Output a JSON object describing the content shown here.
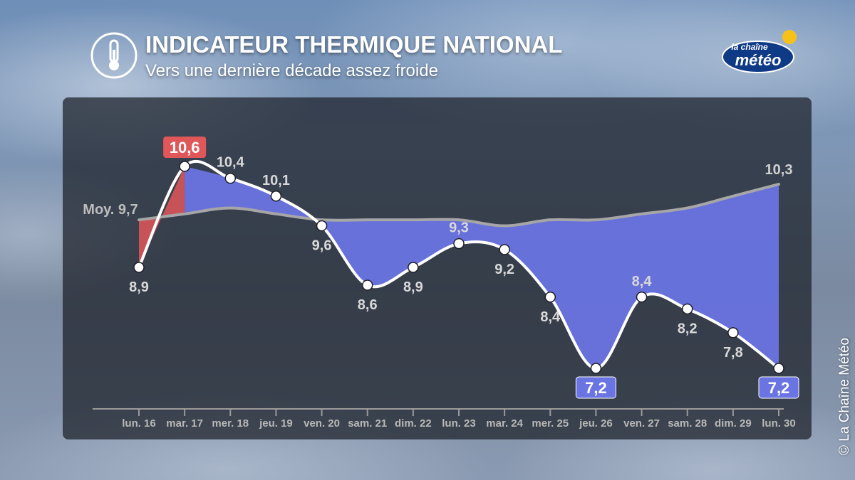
{
  "header": {
    "title": "INDICATEUR THERMIQUE NATIONAL",
    "subtitle": "Vers une dernière décade assez froide",
    "icon": "thermometer-icon"
  },
  "logo": {
    "line1": "la chaîne",
    "line2": "météo"
  },
  "credit": "©  La Chaîne Météo",
  "colors": {
    "above_normal": "#e0575a",
    "below_normal": "#6a74e2",
    "line": "#ffffff",
    "average_line": "#a6a6a6",
    "label": "#d9d9d9"
  },
  "chart_data": {
    "type": "line",
    "categories": [
      "lun. 16",
      "mar. 17",
      "mer. 18",
      "jeu. 19",
      "ven. 20",
      "sam. 21",
      "dim. 22",
      "lun. 23",
      "mar. 24",
      "mer. 25",
      "jeu. 26",
      "ven. 27",
      "sam. 28",
      "dim. 29",
      "lun. 30"
    ],
    "series": [
      {
        "values": [
          8.9,
          10.6,
          10.4,
          10.1,
          9.6,
          8.6,
          8.9,
          9.3,
          9.2,
          8.4,
          7.2,
          8.4,
          8.2,
          7.8,
          7.2
        ]
      },
      {
        "name": "Moy.",
        "values": [
          9.7,
          9.8,
          9.9,
          9.8,
          9.7,
          9.7,
          9.7,
          9.7,
          9.6,
          9.7,
          9.7,
          9.8,
          9.9,
          10.1,
          10.3
        ]
      }
    ],
    "point_labels": [
      "8,9",
      "10,6",
      "10,4",
      "10,1",
      "9,6",
      "8,6",
      "8,9",
      "9,3",
      "9,2",
      "8,4",
      "7,2",
      "8,4",
      "8,2",
      "7,8",
      "7,2"
    ],
    "average_label": "Moy. 9,7",
    "average_end_label": "10,3",
    "max_label": "10,6",
    "min_labels": [
      "7,2",
      "7,2"
    ],
    "ylim": [
      6.9,
      11.0
    ],
    "grid": false,
    "legend": "none"
  }
}
